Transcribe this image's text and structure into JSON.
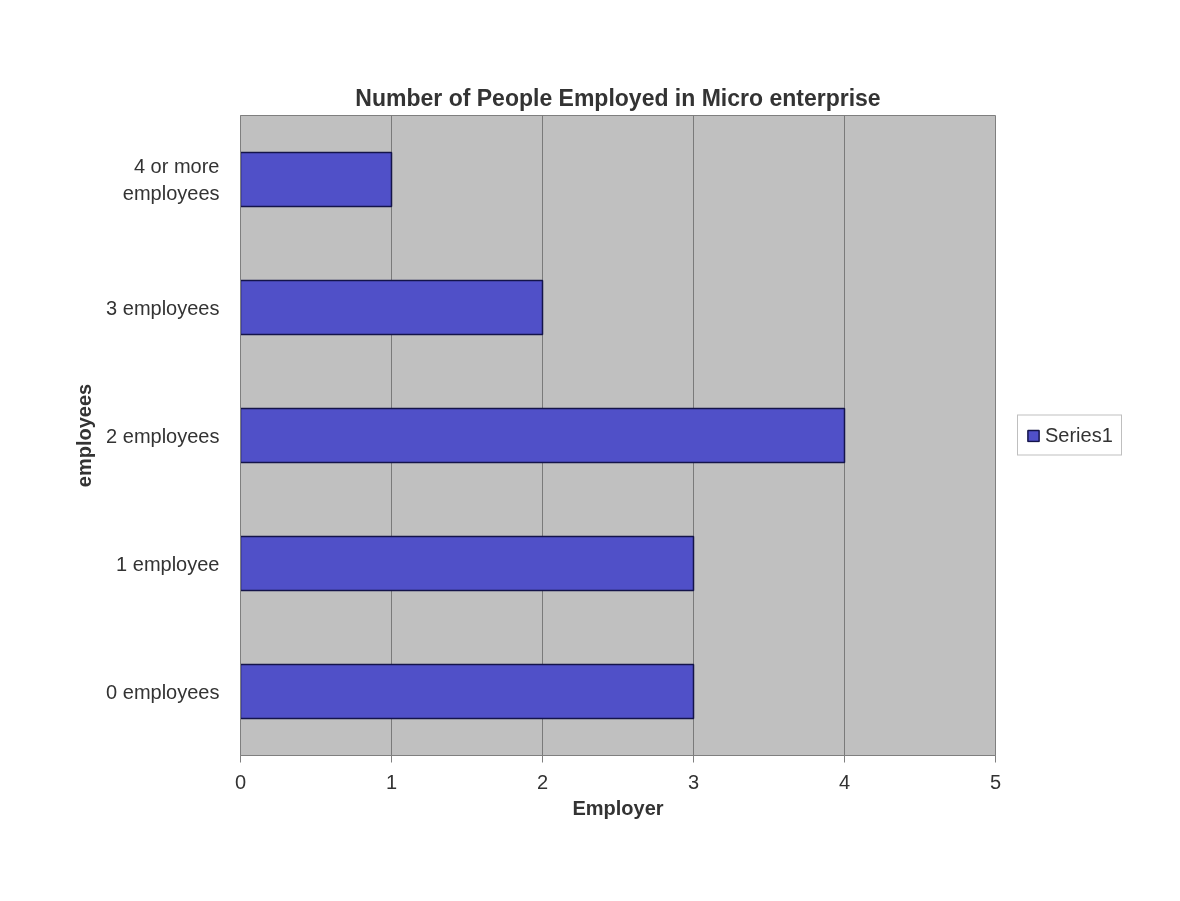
{
  "chart_data": {
    "type": "bar",
    "orientation": "horizontal",
    "title": "Number of People Employed in Micro enterprise",
    "xlabel": "Employer",
    "ylabel": "employees",
    "categories": [
      "4 or more employees",
      "3 employees",
      "2 employees",
      "1 employee",
      "0 employees"
    ],
    "series": [
      {
        "name": "Series1",
        "color": "#5050c8",
        "values": [
          1,
          2,
          4,
          3,
          3
        ]
      }
    ],
    "xlim": [
      0,
      5
    ],
    "xticks": [
      0,
      1,
      2,
      3,
      4,
      5
    ],
    "grid": "x",
    "legend": "right"
  }
}
